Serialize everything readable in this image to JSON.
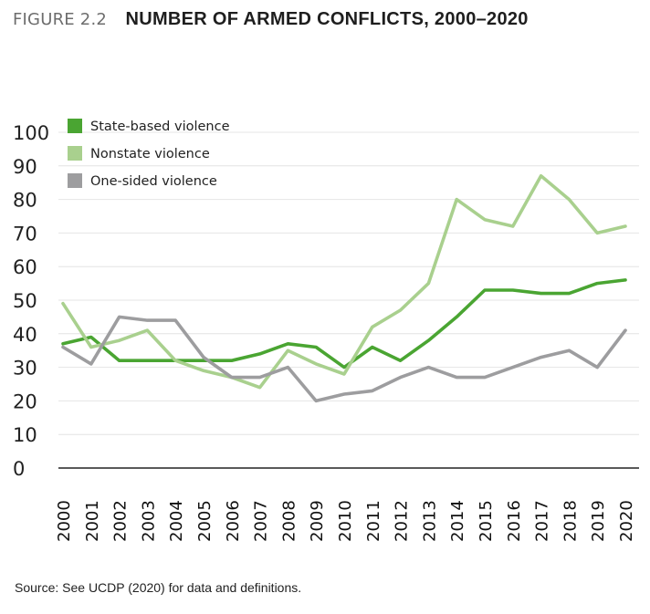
{
  "header": {
    "figure_label": "FIGURE 2.2",
    "title": "NUMBER OF ARMED CONFLICTS, 2000–2020"
  },
  "source": "Source: See UCDP (2020) for data and definitions.",
  "chart_data": {
    "type": "line",
    "title": "NUMBER OF ARMED CONFLICTS, 2000–2020",
    "xlabel": "",
    "ylabel": "",
    "x": [
      2000,
      2001,
      2002,
      2003,
      2004,
      2005,
      2006,
      2007,
      2008,
      2009,
      2010,
      2011,
      2012,
      2013,
      2014,
      2015,
      2016,
      2017,
      2018,
      2019,
      2020
    ],
    "ylim": [
      0,
      100
    ],
    "yticks": [
      0,
      10,
      20,
      30,
      40,
      50,
      60,
      70,
      80,
      90,
      100
    ],
    "grid": "horizontal",
    "legend": "top-left",
    "series": [
      {
        "name": "State-based violence",
        "color": "#4aa532",
        "values": [
          37,
          39,
          32,
          32,
          32,
          32,
          32,
          34,
          37,
          36,
          30,
          36,
          32,
          38,
          45,
          53,
          53,
          52,
          52,
          55,
          56
        ]
      },
      {
        "name": "Nonstate violence",
        "color": "#a9d08e",
        "values": [
          49,
          36,
          38,
          41,
          32,
          29,
          27,
          24,
          35,
          31,
          28,
          42,
          47,
          55,
          80,
          74,
          72,
          87,
          80,
          70,
          72
        ]
      },
      {
        "name": "One-sided violence",
        "color": "#9d9d9f",
        "values": [
          36,
          31,
          45,
          44,
          44,
          33,
          27,
          27,
          30,
          20,
          22,
          23,
          27,
          30,
          27,
          27,
          30,
          33,
          35,
          30,
          41
        ]
      }
    ]
  }
}
